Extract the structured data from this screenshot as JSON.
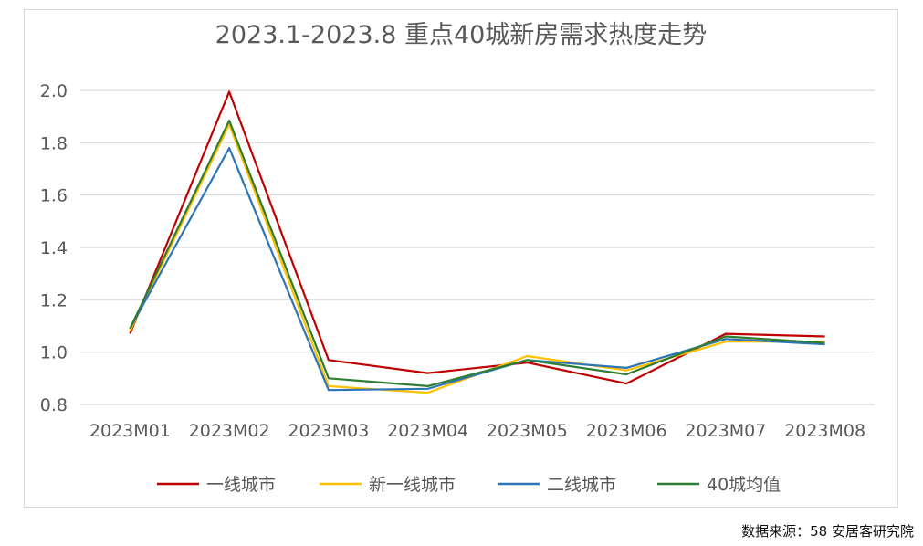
{
  "source_note": "数据来源：58 安居客研究院",
  "chart_data": {
    "type": "line",
    "title": "2023.1-2023.8 重点40城新房需求热度走势",
    "xlabel": "",
    "ylabel": "",
    "ylim": [
      0.8,
      2.0
    ],
    "yticks": [
      "0.8",
      "1.0",
      "1.2",
      "1.4",
      "1.6",
      "1.8",
      "2.0"
    ],
    "grid": true,
    "legend_position": "bottom",
    "categories": [
      "2023M01",
      "2023M02",
      "2023M03",
      "2023M04",
      "2023M05",
      "2023M06",
      "2023M07",
      "2023M08"
    ],
    "series": [
      {
        "name": "一线城市",
        "color": "#c00000",
        "values": [
          1.07,
          1.995,
          0.97,
          0.92,
          0.96,
          0.88,
          1.07,
          1.06
        ]
      },
      {
        "name": "新一线城市",
        "color": "#ffc000",
        "values": [
          1.08,
          1.87,
          0.87,
          0.845,
          0.985,
          0.93,
          1.04,
          1.04
        ]
      },
      {
        "name": "二线城市",
        "color": "#2e75b6",
        "values": [
          1.09,
          1.78,
          0.855,
          0.86,
          0.97,
          0.94,
          1.05,
          1.03
        ]
      },
      {
        "name": "40城均值",
        "color": "#2f7d32",
        "values": [
          1.09,
          1.885,
          0.9,
          0.87,
          0.97,
          0.915,
          1.06,
          1.035
        ]
      }
    ]
  }
}
